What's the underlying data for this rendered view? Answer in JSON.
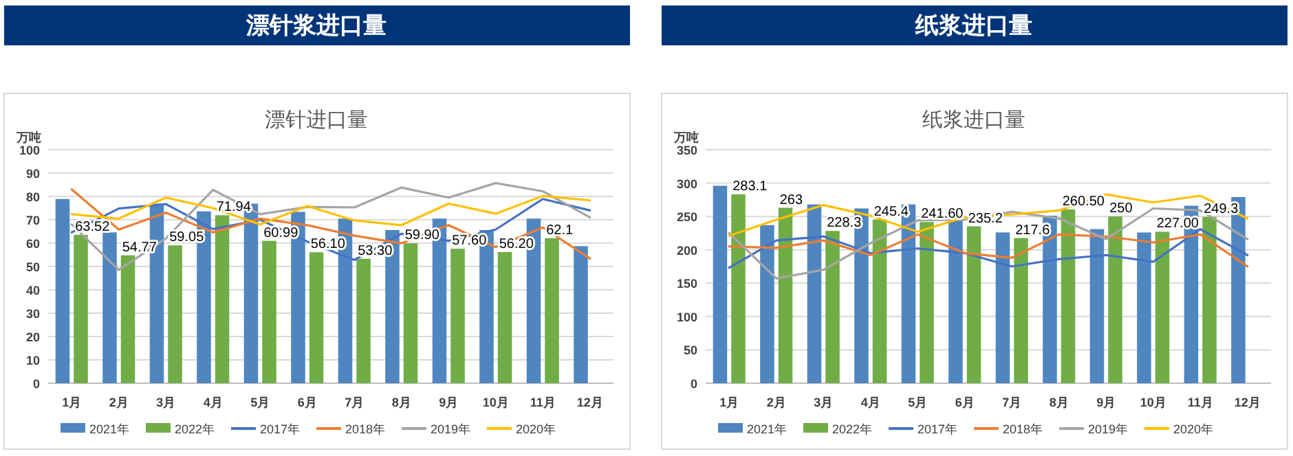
{
  "chart_data": [
    {
      "type": "bar",
      "title": "漂针浆进口量",
      "subtitle": "漂针进口量",
      "ylabel": "万吨",
      "categories": [
        "1月",
        "2月",
        "3月",
        "4月",
        "5月",
        "6月",
        "7月",
        "8月",
        "9月",
        "10月",
        "11月",
        "12月"
      ],
      "ylim": [
        0,
        100
      ],
      "yticks": [
        0,
        10,
        20,
        30,
        40,
        50,
        60,
        70,
        80,
        90,
        100
      ],
      "grid": "y",
      "legend": "bottom",
      "series": [
        {
          "name": "2021年",
          "color": "#4f86c0",
          "values": [
            78.9,
            64.6,
            76.9,
            73.6,
            76.9,
            73.4,
            70.5,
            65.6,
            70.5,
            65.6,
            70.5,
            58.7
          ]
        },
        {
          "name": "2022年",
          "color": "#70ad47",
          "values": [
            63.52,
            54.77,
            59.05,
            71.94,
            60.99,
            56.1,
            53.3,
            59.9,
            57.6,
            56.2,
            62.1,
            null
          ],
          "value_labels": [
            "63.52",
            "54.77",
            "59.05",
            "71.94",
            "60.99",
            "56.10",
            "53.30",
            "59.90",
            "57.60",
            "56.20",
            "62.1",
            null
          ]
        },
        {
          "name": "2017年",
          "type": "line",
          "color": "#4472c4",
          "values": [
            64.6,
            74.8,
            76.7,
            66,
            70,
            60.7,
            52.8,
            64,
            61,
            65.8,
            78.9,
            74
          ]
        },
        {
          "name": "2018年",
          "type": "line",
          "color": "#ed7d31",
          "values": [
            83,
            65.8,
            73,
            64.6,
            70.5,
            67.7,
            63.2,
            59.9,
            67.7,
            58.3,
            66.7,
            53.4
          ]
        },
        {
          "name": "2019年",
          "type": "line",
          "color": "#a5a5a5",
          "values": [
            68,
            48.5,
            62,
            82.8,
            72.4,
            75.5,
            75.3,
            83.8,
            79.5,
            85.7,
            82.2,
            71
          ]
        },
        {
          "name": "2020年",
          "type": "line",
          "color": "#ffc000",
          "values": [
            72.4,
            70.5,
            79.5,
            75,
            68,
            75.9,
            69.7,
            67.7,
            76.9,
            72.6,
            80.2,
            78.3
          ]
        }
      ]
    },
    {
      "type": "bar",
      "title": "纸浆进口量",
      "subtitle": "纸浆进口量",
      "ylabel": "万吨",
      "categories": [
        "1月",
        "2月",
        "3月",
        "4月",
        "5月",
        "6月",
        "7月",
        "8月",
        "9月",
        "10月",
        "11月",
        "12月"
      ],
      "ylim": [
        0,
        350
      ],
      "yticks": [
        0,
        50,
        100,
        150,
        200,
        250,
        300,
        350
      ],
      "grid": "y",
      "legend": "bottom",
      "series": [
        {
          "name": "2021年",
          "color": "#4f86c0",
          "values": [
            296,
            237,
            268,
            262,
            268,
            251,
            226,
            251,
            231,
            226,
            266,
            279
          ]
        },
        {
          "name": "2022年",
          "color": "#70ad47",
          "values": [
            283.1,
            263,
            228.3,
            245.4,
            241.6,
            235.2,
            217.6,
            260.5,
            250,
            227,
            249.3,
            null
          ],
          "value_labels": [
            "283.1",
            "263",
            "228.3",
            "245.4",
            "241.60",
            "235.2",
            "217.6",
            "260.50",
            "250",
            "227.00",
            "249.3",
            null
          ]
        },
        {
          "name": "2017年",
          "type": "line",
          "color": "#4472c4",
          "values": [
            173,
            214,
            220,
            195,
            202,
            195,
            175,
            186,
            192,
            182,
            231,
            192
          ]
        },
        {
          "name": "2018年",
          "type": "line",
          "color": "#ed7d31",
          "values": [
            205,
            203,
            214,
            192,
            223,
            195,
            188,
            223,
            220,
            211,
            223,
            175
          ]
        },
        {
          "name": "2019年",
          "type": "line",
          "color": "#a5a5a5",
          "values": [
            225,
            157,
            170,
            210,
            244,
            245,
            257,
            247,
            216,
            262,
            259,
            216
          ]
        },
        {
          "name": "2020年",
          "type": "line",
          "color": "#ffc000",
          "values": [
            221,
            245,
            267,
            251,
            227,
            249,
            253,
            259,
            283,
            271,
            281,
            247
          ]
        }
      ]
    }
  ]
}
